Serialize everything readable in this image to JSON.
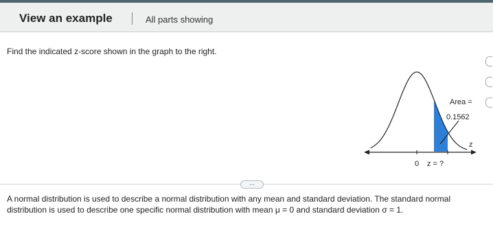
{
  "header": {
    "title": "View an example",
    "status": "All parts showing"
  },
  "question": "Find the indicated z-score shown in the graph to the right.",
  "graph": {
    "area_label": "Area =",
    "area_value": "0.1562",
    "axis_label": "z",
    "origin_label": "0",
    "unknown_label": "z = ?"
  },
  "divider": "...",
  "explanation": {
    "part1": "A normal distribution is used to describe a normal distribution with any mean and standard deviation. The standard normal distribution is used to describe one specific normal distribution with mean ",
    "mean": "μ = 0",
    "part2": " and standard deviation ",
    "sd": "σ = 1",
    "part3": "."
  }
}
